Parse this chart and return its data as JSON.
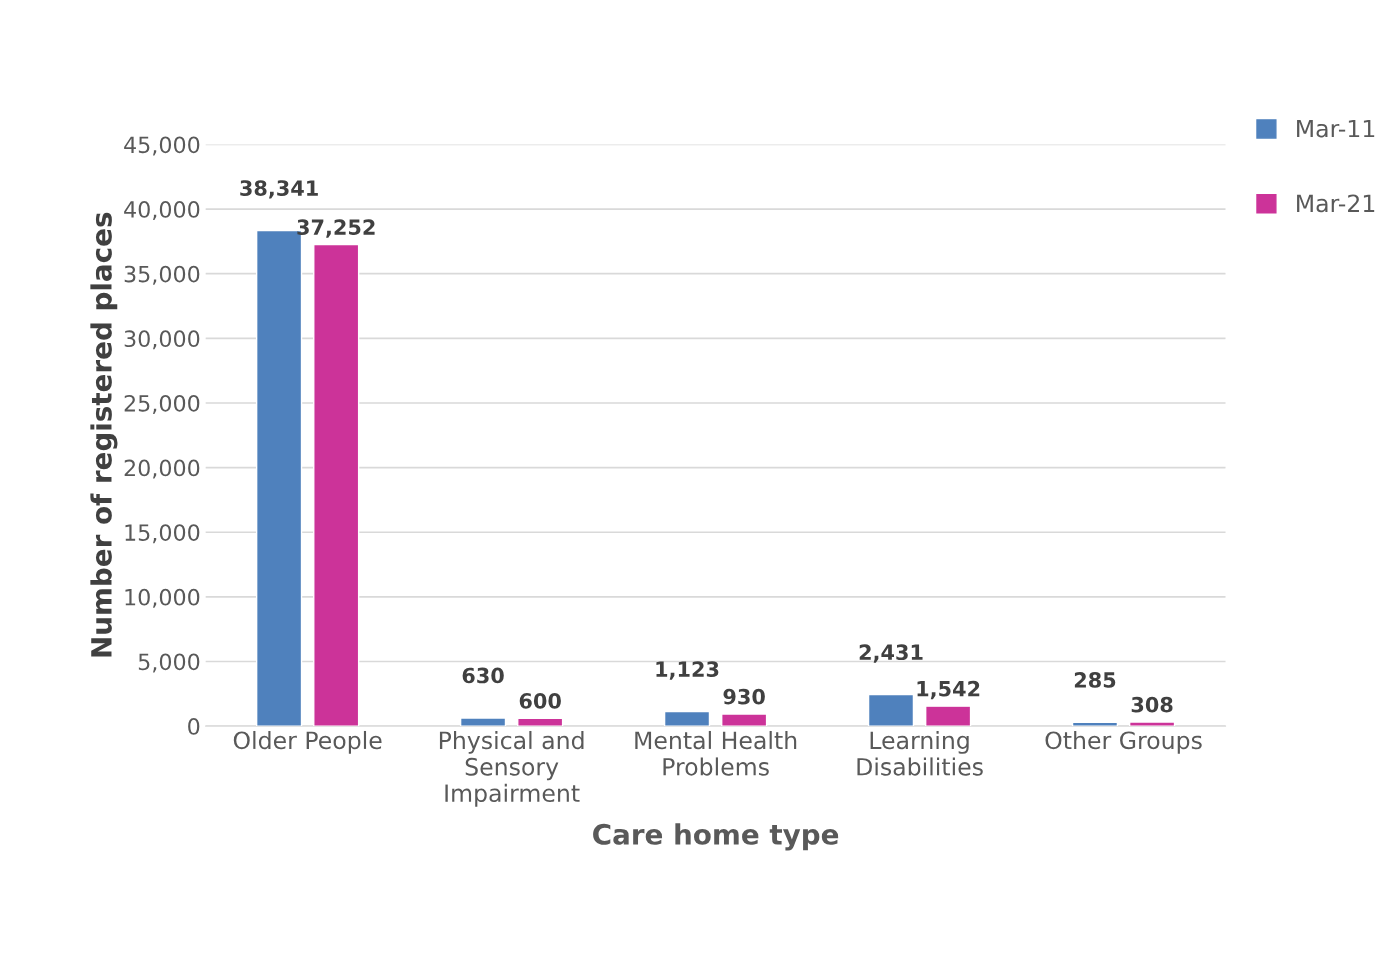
{
  "chart_data": {
    "type": "bar",
    "xlabel": "Care home type",
    "ylabel": "Number of registered places",
    "categories": [
      "Older People",
      "Physical and\nSensory\nImpairment",
      "Mental Health\nProblems",
      "Learning\nDisabilities",
      "Other Groups"
    ],
    "series": [
      {
        "name": "Mar-11",
        "color": "#4f81bd",
        "values": [
          38341,
          630,
          1123,
          2431,
          285
        ],
        "value_labels": [
          "38,341",
          "630",
          "1,123",
          "2,431",
          "285"
        ]
      },
      {
        "name": "Mar-21",
        "color": "#cc3399",
        "values": [
          37252,
          600,
          930,
          1542,
          308
        ],
        "value_labels": [
          "37,252",
          "600",
          "930",
          "1,542",
          "308"
        ]
      }
    ],
    "ylim": [
      0,
      45000
    ],
    "yticks": [
      {
        "value": 0,
        "label": "0"
      },
      {
        "value": 5000,
        "label": "5,000"
      },
      {
        "value": 10000,
        "label": "10,000"
      },
      {
        "value": 15000,
        "label": "15,000"
      },
      {
        "value": 20000,
        "label": "20,000"
      },
      {
        "value": 25000,
        "label": "25,000"
      },
      {
        "value": 30000,
        "label": "30,000"
      },
      {
        "value": 35000,
        "label": "35,000"
      },
      {
        "value": 40000,
        "label": "40,000"
      },
      {
        "value": 45000,
        "label": "45,000"
      }
    ],
    "grid": "y",
    "legend": "top right"
  }
}
